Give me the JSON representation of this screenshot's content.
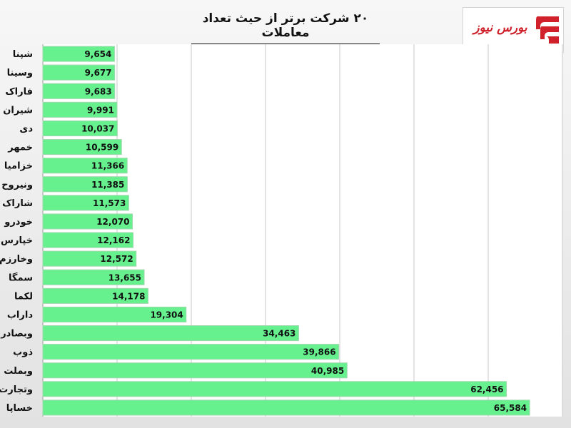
{
  "chart_data": {
    "type": "bar",
    "orientation": "horizontal",
    "title": "۲۰ شرکت برتر از حیث تعداد معاملات",
    "categories": [
      "شپنا",
      "وسینا",
      "فاراک",
      "شیران",
      "دی",
      "خمهر",
      "خزامیا",
      "ونیروح",
      "شاراک",
      "خودرو",
      "خپارس",
      "وخارزم",
      "سمگا",
      "لکما",
      "داراب",
      "وبصادر",
      "ذوب",
      "وبملت",
      "وتجارت",
      "خساپا"
    ],
    "values": [
      9654,
      9677,
      9683,
      9991,
      10037,
      10599,
      11366,
      11385,
      11573,
      12070,
      12162,
      12572,
      13655,
      14178,
      19304,
      34463,
      39866,
      40985,
      62456,
      65584
    ],
    "value_labels": [
      "9,654",
      "9,677",
      "9,683",
      "9,991",
      "10,037",
      "10,599",
      "11,366",
      "11,385",
      "11,573",
      "12,070",
      "12,162",
      "12,572",
      "13,655",
      "14,178",
      "19,304",
      "34,463",
      "39,866",
      "40,985",
      "62,456",
      "65,584"
    ],
    "xlim": [
      0,
      70000
    ],
    "grid": true,
    "bar_color": "#66f08e",
    "legend": "none"
  },
  "logo": {
    "text": "بورس نیوز",
    "color": "#d0202a"
  }
}
